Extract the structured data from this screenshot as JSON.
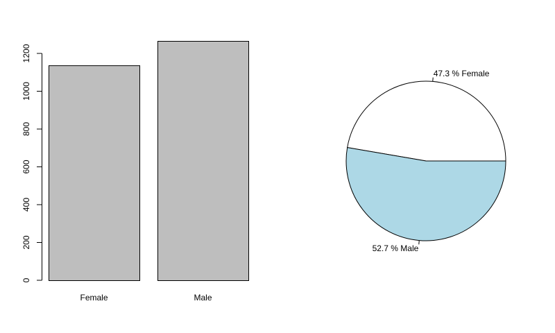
{
  "chart_data": [
    {
      "type": "bar",
      "title": "",
      "xlabel": "",
      "ylabel": "",
      "categories": [
        "Female",
        "Male"
      ],
      "values": [
        1137,
        1266
      ],
      "ylim": [
        0,
        1266
      ],
      "yticks": [
        0,
        200,
        400,
        600,
        800,
        1000,
        1200
      ],
      "grid": false,
      "colors": {
        "bar_fill": "#bebebe",
        "stroke": "#000000"
      }
    },
    {
      "type": "pie",
      "title": "",
      "slices": [
        {
          "label": "Female",
          "value": 47.3,
          "text": "47.3 %  Female",
          "color": "#ffffff"
        },
        {
          "label": "Male",
          "value": 52.7,
          "text": "52.7 %  Male",
          "color": "#add8e6"
        }
      ],
      "start_angle_deg": 0,
      "direction": "counterclockwise",
      "colors": {
        "stroke": "#000000"
      }
    }
  ]
}
